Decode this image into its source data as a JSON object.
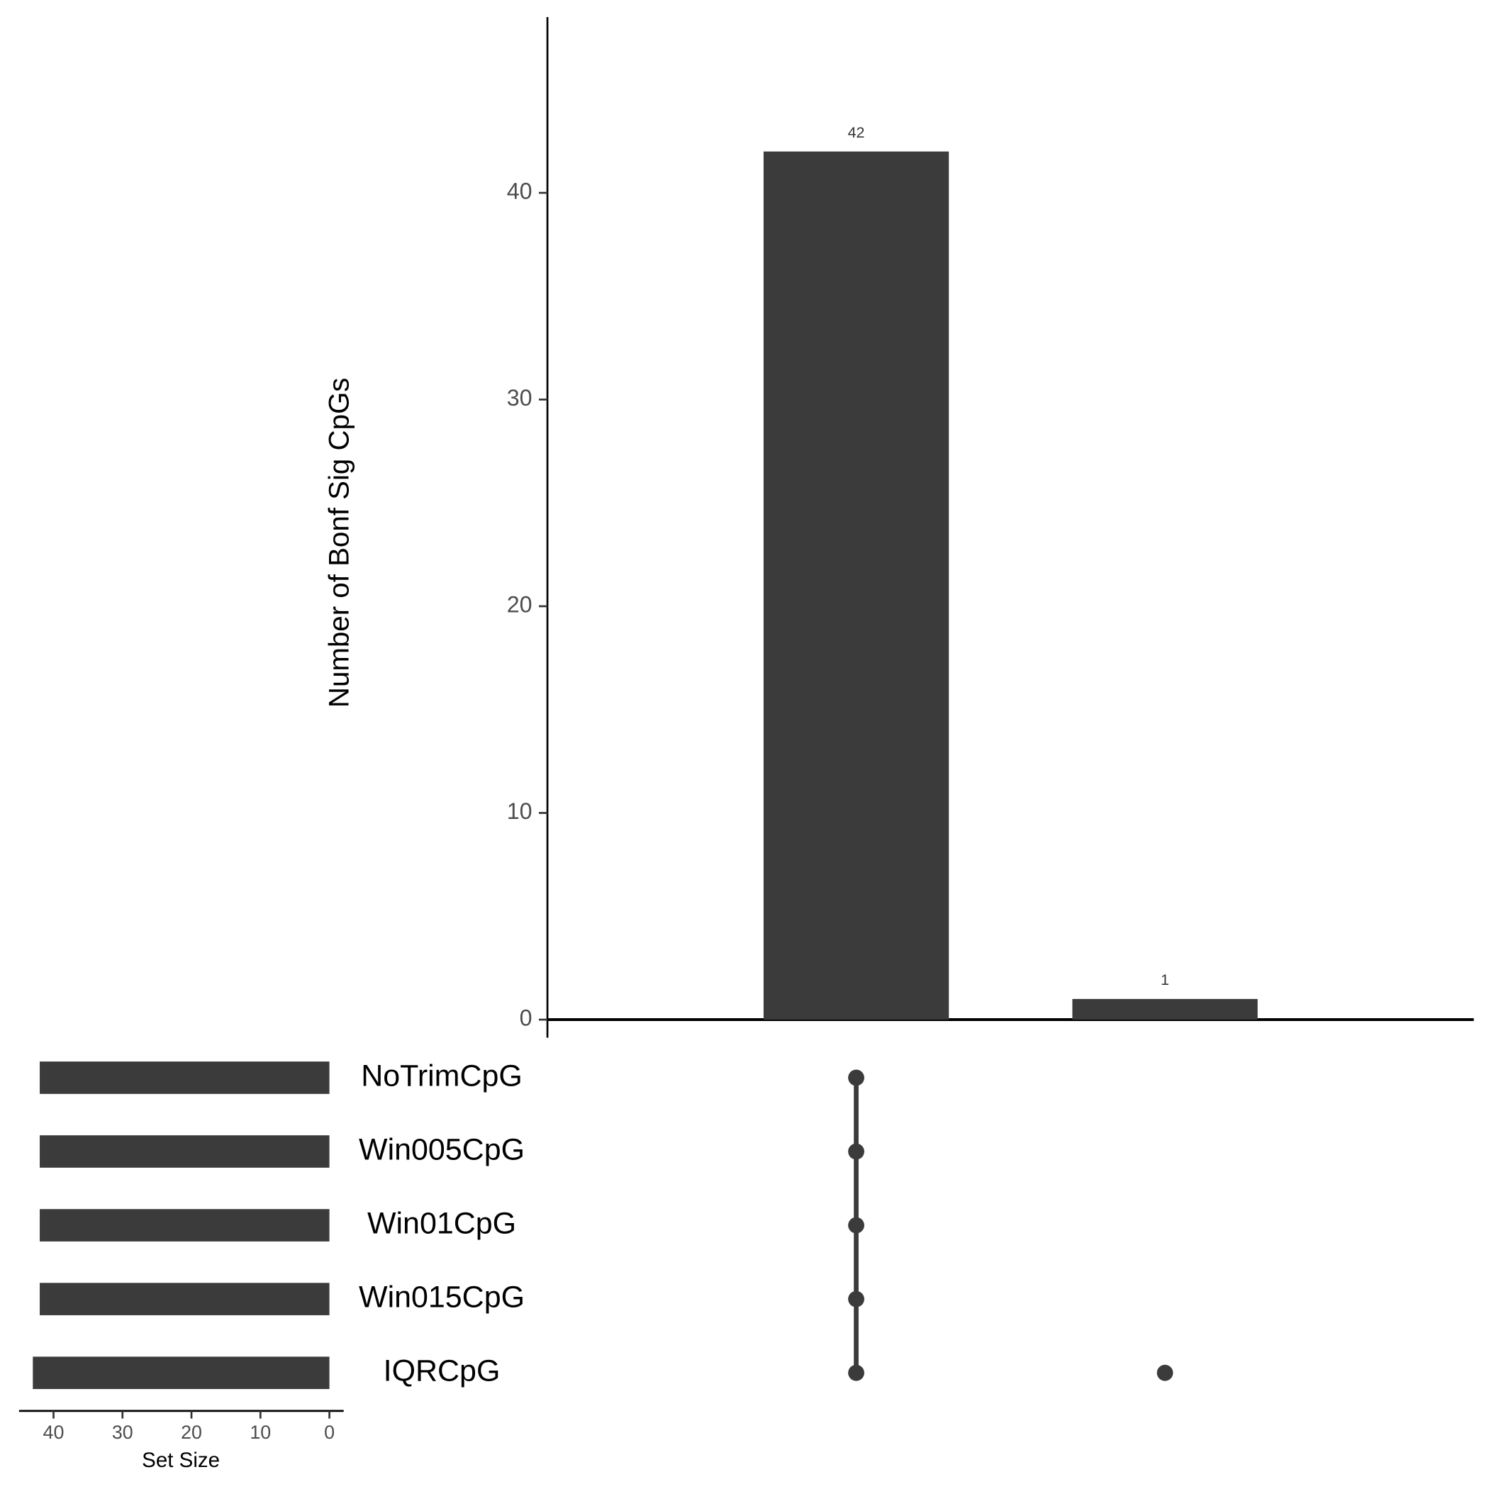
{
  "chart_data": {
    "type": "upset",
    "ylabel": "Number of Bonf Sig CpGs",
    "values": [
      42,
      1
    ],
    "color": "#3b3b3b",
    "ylim": [
      0,
      48.5
    ],
    "yticks": [
      0,
      10,
      20,
      30,
      40
    ],
    "xlim": [
      0,
      3
    ],
    "sets": [
      "NoTrimCpG",
      "Win005CpG",
      "Win01CpG",
      "Win015CpG",
      "IQRCpG"
    ],
    "set_sizes": [
      42,
      42,
      42,
      42,
      43
    ],
    "set_size_label": "Set Size",
    "set_size_lim": [
      0,
      45
    ],
    "set_size_ticks": [
      0,
      10,
      20,
      30,
      40
    ],
    "members": [
      [
        0,
        1,
        2,
        3,
        4
      ],
      [
        4
      ]
    ]
  }
}
